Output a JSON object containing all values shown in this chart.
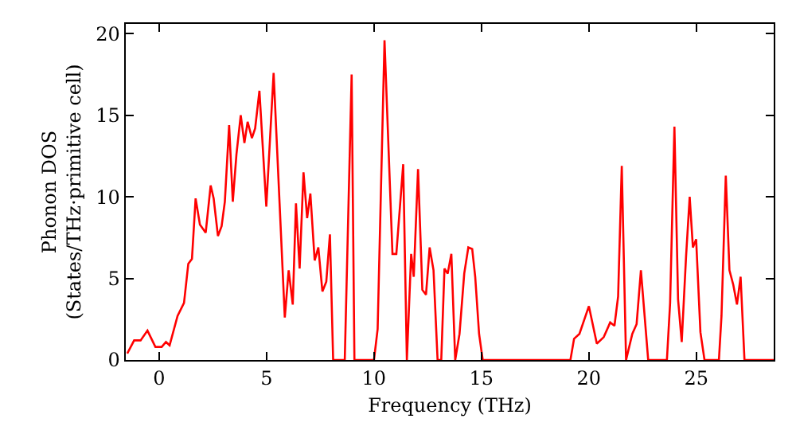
{
  "chart_data": {
    "type": "line",
    "xlabel": "Frequency (THz)",
    "ylabel": "Phonon DOS\n(States/THz·primitive cell)",
    "xlim": [
      -1.55,
      28.6
    ],
    "xticks": [
      0,
      5,
      10,
      15,
      20,
      25
    ],
    "ylim": [
      0,
      20.6
    ],
    "yticks": [
      0,
      5,
      10,
      15,
      20
    ],
    "grid": false,
    "marker": "none",
    "line_style": "solid",
    "series": [
      {
        "color": "#ff0000",
        "x": [
          -1.48,
          -1.16,
          -0.86,
          -0.54,
          -0.17,
          0.12,
          0.32,
          0.49,
          0.86,
          1.16,
          1.36,
          1.53,
          1.7,
          1.9,
          2.17,
          2.4,
          2.54,
          2.74,
          2.91,
          3.06,
          3.26,
          3.43,
          3.6,
          3.8,
          3.97,
          4.12,
          4.32,
          4.47,
          4.67,
          4.99,
          5.33,
          5.85,
          6.03,
          6.22,
          6.37,
          6.54,
          6.72,
          6.89,
          7.04,
          7.24,
          7.41,
          7.6,
          7.78,
          7.95,
          8.1,
          8.64,
          8.96,
          9.09,
          10.0,
          10.17,
          10.49,
          10.86,
          11.04,
          11.36,
          11.53,
          11.73,
          11.85,
          12.05,
          12.25,
          12.42,
          12.59,
          12.77,
          12.96,
          13.13,
          13.28,
          13.43,
          13.6,
          13.78,
          13.98,
          14.2,
          14.39,
          14.57,
          14.71,
          14.89,
          15.06,
          19.14,
          19.31,
          19.56,
          20.0,
          20.37,
          20.69,
          20.99,
          21.19,
          21.36,
          21.53,
          21.73,
          22.02,
          22.22,
          22.42,
          22.76,
          23.63,
          23.78,
          23.98,
          24.15,
          24.32,
          24.52,
          24.69,
          24.84,
          24.99,
          25.19,
          25.38,
          26.05,
          26.17,
          26.37,
          26.54,
          26.72,
          26.89,
          27.06,
          27.24,
          28.6
        ],
        "values": [
          0.4,
          1.2,
          1.2,
          1.8,
          0.8,
          0.8,
          1.1,
          0.9,
          2.7,
          3.5,
          5.9,
          6.2,
          9.9,
          8.3,
          7.8,
          10.7,
          9.9,
          7.6,
          8.2,
          9.7,
          14.4,
          9.7,
          12.6,
          15.0,
          13.3,
          14.6,
          13.6,
          14.2,
          16.5,
          9.4,
          17.6,
          2.6,
          5.5,
          3.4,
          9.6,
          5.6,
          11.5,
          8.7,
          10.2,
          6.1,
          6.9,
          4.2,
          4.8,
          7.7,
          0,
          0,
          17.5,
          0,
          0,
          1.9,
          19.6,
          6.5,
          6.5,
          12.0,
          0,
          6.5,
          5.1,
          11.7,
          4.3,
          4.0,
          6.9,
          5.5,
          0,
          0,
          5.6,
          5.3,
          6.5,
          0,
          1.6,
          5.3,
          6.9,
          6.8,
          5.1,
          1.6,
          0,
          0,
          1.3,
          1.6,
          3.3,
          1.0,
          1.4,
          2.3,
          2.1,
          3.9,
          11.9,
          0,
          1.6,
          2.2,
          5.5,
          0,
          0,
          3.5,
          14.3,
          3.7,
          1.1,
          6.3,
          10.0,
          6.9,
          7.4,
          1.7,
          0,
          0,
          2.7,
          11.3,
          5.5,
          4.6,
          3.4,
          5.1,
          0,
          0
        ]
      }
    ]
  }
}
